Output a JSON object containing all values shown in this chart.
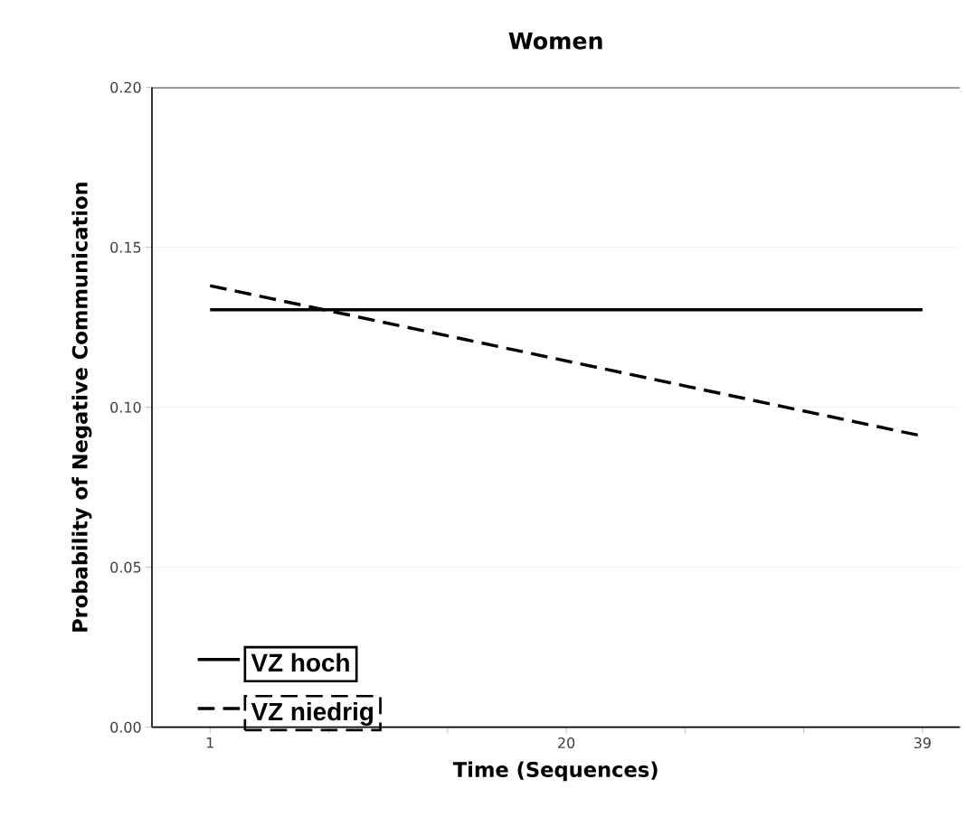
{
  "chart_data": {
    "type": "line",
    "title": "Women",
    "xlabel": "Time (Sequences)",
    "ylabel": "Probability of Negative Communication",
    "x": [
      1,
      39
    ],
    "series": [
      {
        "name": "VZ hoch",
        "color": "#000000",
        "line_style": "solid",
        "values": [
          0.1305,
          0.1305
        ]
      },
      {
        "name": "VZ niedrig",
        "color": "#000000",
        "line_style": "dashed",
        "values": [
          0.138,
          0.091
        ]
      }
    ],
    "xlim": [
      -2.1,
      41
    ],
    "xticks": [
      1,
      {
        "value": 7.33,
        "label": null
      },
      {
        "value": 13.67,
        "label": null
      },
      20,
      {
        "value": 26.33,
        "label": null
      },
      {
        "value": 32.67,
        "label": null
      },
      39
    ],
    "ylim": [
      0,
      0.2
    ],
    "yticks": [
      {
        "value": 0,
        "label": "0.00"
      },
      {
        "value": 0.05,
        "label": "0.05"
      },
      {
        "value": 0.1,
        "label": "0.10"
      },
      {
        "value": 0.15,
        "label": "0.15"
      },
      {
        "value": 0.2,
        "label": "0.20"
      }
    ],
    "grid": "y",
    "legend": "bottom left",
    "marker": "none"
  }
}
